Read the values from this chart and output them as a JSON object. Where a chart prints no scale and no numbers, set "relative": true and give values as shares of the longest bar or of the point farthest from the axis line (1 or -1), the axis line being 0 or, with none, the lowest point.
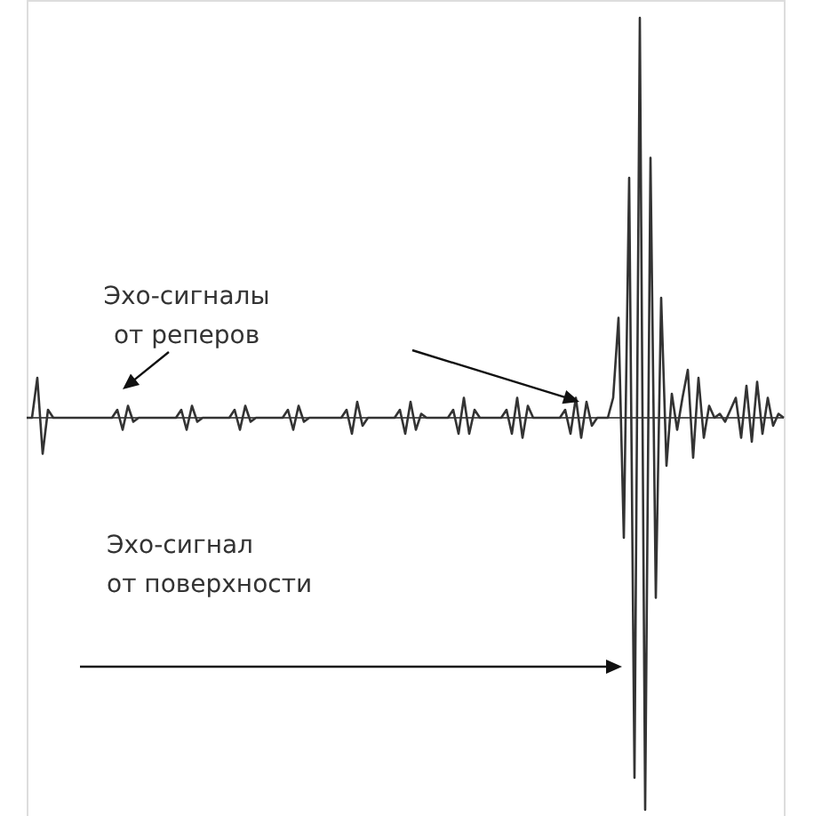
{
  "chart_data": {
    "type": "line",
    "relative": true,
    "color": "#333333",
    "categories": [
      null,
      null,
      null,
      null,
      null,
      null,
      null,
      null,
      null,
      null,
      null,
      null,
      null,
      null,
      null,
      null,
      null,
      null,
      null,
      null,
      null,
      null,
      null,
      null,
      null,
      null,
      null,
      null,
      null,
      null,
      null,
      null,
      null,
      null,
      null,
      null,
      null,
      null,
      null,
      null,
      null,
      null,
      null,
      null,
      null,
      null,
      null,
      null,
      null,
      null,
      null,
      null,
      null,
      null,
      null,
      null,
      null,
      null,
      null,
      null,
      null,
      null,
      null,
      null,
      null,
      null,
      null,
      null,
      null,
      null,
      null,
      null,
      null,
      null,
      null,
      null,
      null,
      null,
      null,
      null,
      null,
      null,
      null,
      null,
      null,
      null,
      null,
      null,
      null,
      null,
      null,
      null,
      null,
      null,
      null,
      null,
      null,
      null,
      null,
      null,
      null,
      null,
      null,
      null,
      null,
      null,
      null,
      null,
      null,
      null,
      null,
      null,
      null,
      null,
      null,
      null,
      null,
      null,
      null,
      null,
      null,
      null,
      null,
      null,
      null,
      null,
      null,
      null,
      null,
      null,
      null,
      null,
      null,
      null,
      null,
      null,
      null,
      null,
      null,
      null,
      null,
      null,
      null
    ],
    "values": [
      0,
      0,
      0.1,
      -0.09,
      0.02,
      0,
      0,
      0,
      0,
      0,
      0,
      0,
      0,
      0,
      0,
      0,
      0,
      0.02,
      -0.03,
      0.03,
      -0.01,
      0,
      0,
      0,
      0,
      0,
      0,
      0,
      0,
      0.02,
      -0.03,
      0.03,
      -0.01,
      0,
      0,
      0,
      0,
      0,
      0,
      0.02,
      -0.03,
      0.03,
      -0.01,
      0,
      0,
      0,
      0,
      0,
      0,
      0.02,
      -0.03,
      0.03,
      -0.01,
      0,
      0,
      0,
      0,
      0,
      0,
      0,
      0.02,
      -0.04,
      0.04,
      -0.02,
      0,
      0,
      0,
      0,
      0,
      0,
      0.02,
      -0.04,
      0.04,
      -0.03,
      0.01,
      0,
      0,
      0,
      0,
      0,
      0.02,
      -0.04,
      0.05,
      -0.04,
      0.02,
      0,
      0,
      0,
      0,
      0,
      0.02,
      -0.04,
      0.05,
      -0.05,
      0.03,
      0,
      0,
      0,
      0,
      0,
      0,
      0.02,
      -0.04,
      0.05,
      -0.05,
      0.04,
      -0.02,
      0,
      0,
      0,
      0.05,
      0.25,
      -0.3,
      0.6,
      -0.9,
      1.0,
      -0.98,
      0.65,
      -0.45,
      0.3,
      -0.12,
      0.06,
      -0.03,
      0.05,
      0.12,
      -0.1,
      0.1,
      -0.05,
      0.03,
      0,
      0.01,
      -0.01,
      0.02,
      0.05,
      -0.05,
      0.08,
      -0.06,
      0.09,
      -0.04,
      0.05,
      -0.02,
      0.01,
      0
    ],
    "annotations": [
      "Эхо-сигналы\nот реперов",
      "Эхо-сигнал\nот поверхности"
    ]
  }
}
